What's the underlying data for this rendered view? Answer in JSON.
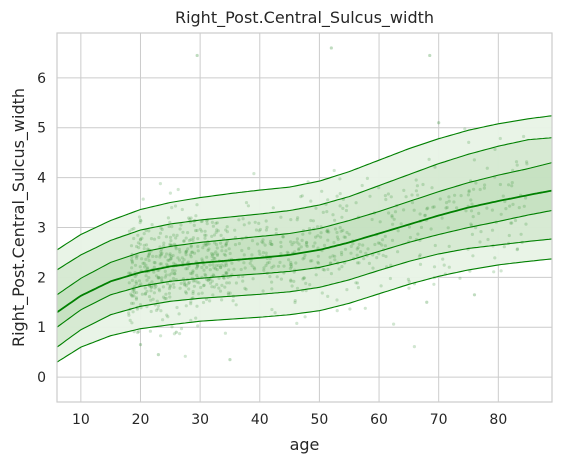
{
  "chart_data": {
    "type": "line",
    "title": "Right_Post.Central_Sulcus_width",
    "xlabel": "age",
    "ylabel": "Right_Post.Central_Sulcus_width",
    "xlim": [
      6,
      89
    ],
    "ylim": [
      -0.5,
      6.9
    ],
    "x_ticks": [
      10,
      20,
      30,
      40,
      50,
      60,
      70,
      80
    ],
    "y_ticks": [
      0,
      1,
      2,
      3,
      4,
      5,
      6
    ],
    "grid": true,
    "legend": "none",
    "colors": {
      "line": "#008000",
      "band_outer": "#e8f3e6",
      "band_mid": "#cfe6cb",
      "band_inner": "#b9dbb4",
      "scatter": "#2e8b2e",
      "grid": "#cccccc",
      "frame": "#cccccc"
    },
    "x": [
      6,
      10,
      15,
      20,
      25,
      30,
      35,
      40,
      45,
      50,
      55,
      60,
      65,
      70,
      75,
      80,
      85,
      89
    ],
    "series": [
      {
        "name": "",
        "role": "q05",
        "values": [
          0.3,
          0.6,
          0.83,
          0.97,
          1.05,
          1.12,
          1.16,
          1.2,
          1.25,
          1.33,
          1.48,
          1.67,
          1.86,
          2.02,
          2.15,
          2.25,
          2.32,
          2.37
        ]
      },
      {
        "name": "",
        "role": "q10",
        "values": [
          0.6,
          0.95,
          1.25,
          1.42,
          1.52,
          1.58,
          1.62,
          1.66,
          1.71,
          1.8,
          1.95,
          2.14,
          2.32,
          2.47,
          2.58,
          2.65,
          2.72,
          2.77
        ]
      },
      {
        "name": "",
        "role": "q25",
        "values": [
          1.0,
          1.35,
          1.65,
          1.82,
          1.92,
          1.98,
          2.03,
          2.07,
          2.12,
          2.2,
          2.34,
          2.52,
          2.7,
          2.86,
          3.0,
          3.12,
          3.25,
          3.34
        ]
      },
      {
        "name": "",
        "role": "q50",
        "values": [
          1.3,
          1.63,
          1.92,
          2.1,
          2.22,
          2.29,
          2.34,
          2.39,
          2.45,
          2.55,
          2.7,
          2.88,
          3.06,
          3.24,
          3.4,
          3.53,
          3.65,
          3.74
        ]
      },
      {
        "name": "",
        "role": "q75",
        "values": [
          1.65,
          1.98,
          2.3,
          2.5,
          2.62,
          2.7,
          2.76,
          2.82,
          2.88,
          2.98,
          3.14,
          3.32,
          3.52,
          3.72,
          3.9,
          4.05,
          4.18,
          4.3
        ]
      },
      {
        "name": "",
        "role": "q90",
        "values": [
          2.15,
          2.45,
          2.74,
          2.95,
          3.07,
          3.15,
          3.21,
          3.27,
          3.34,
          3.45,
          3.62,
          3.84,
          4.06,
          4.28,
          4.47,
          4.63,
          4.76,
          4.8
        ]
      },
      {
        "name": "",
        "role": "q95",
        "values": [
          2.55,
          2.86,
          3.14,
          3.36,
          3.5,
          3.6,
          3.68,
          3.75,
          3.81,
          3.93,
          4.12,
          4.35,
          4.58,
          4.78,
          4.95,
          5.08,
          5.18,
          5.24
        ]
      }
    ],
    "scatter_outliers": [
      {
        "x": 29.5,
        "y": 6.45
      },
      {
        "x": 52,
        "y": 6.6
      },
      {
        "x": 68.5,
        "y": 6.45
      },
      {
        "x": 70,
        "y": 5.1
      },
      {
        "x": 23,
        "y": 0.45
      },
      {
        "x": 20,
        "y": 0.65
      },
      {
        "x": 35,
        "y": 0.35
      },
      {
        "x": 26,
        "y": 0.9
      },
      {
        "x": 76,
        "y": 1.65
      },
      {
        "x": 68,
        "y": 1.5
      }
    ],
    "scatter_seed": 7,
    "scatter_count": 900
  }
}
